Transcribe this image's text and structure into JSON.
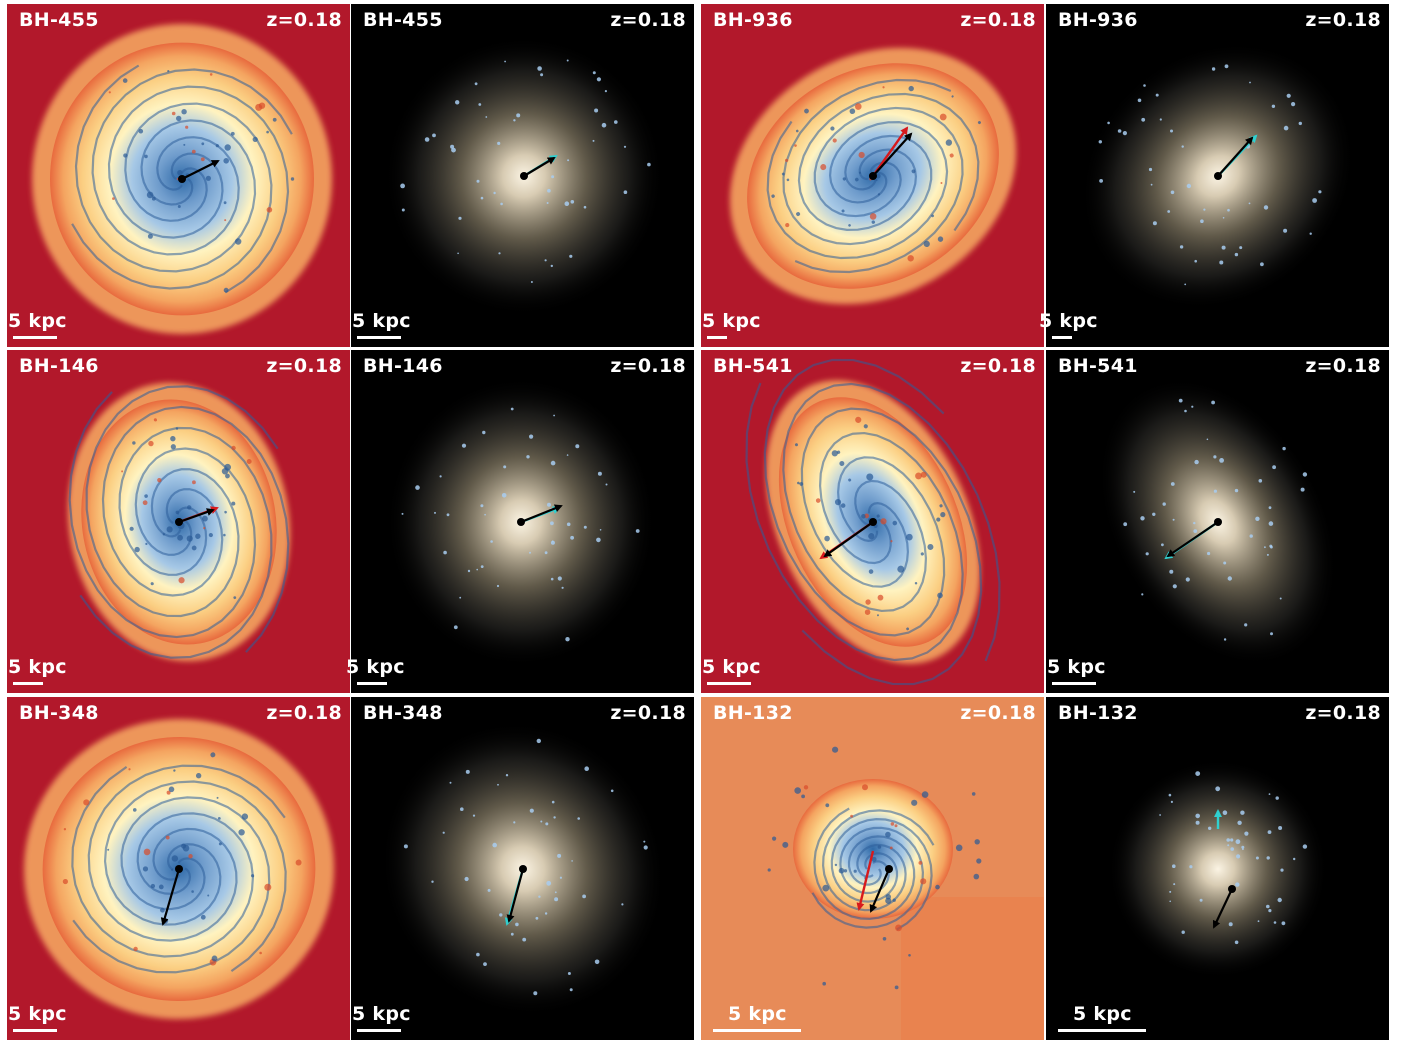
{
  "rows": [
    {
      "pairs": [
        {
          "id": "BH-455",
          "redshift": "z=0.18",
          "gas_scale": "5 kpc",
          "star_scale": "5 kpc"
        },
        {
          "id": "BH-936",
          "redshift": "z=0.18",
          "gas_scale": "5 kpc",
          "star_scale": "5 kpc"
        }
      ]
    },
    {
      "pairs": [
        {
          "id": "BH-146",
          "redshift": "z=0.18",
          "gas_scale": "5 kpc",
          "star_scale": "5 kpc"
        },
        {
          "id": "BH-541",
          "redshift": "z=0.18",
          "gas_scale": "5 kpc",
          "star_scale": "5 kpc"
        }
      ]
    },
    {
      "pairs": [
        {
          "id": "BH-348",
          "redshift": "z=0.18",
          "gas_scale": "5 kpc",
          "star_scale": "5 kpc"
        },
        {
          "id": "BH-132",
          "redshift": "z=0.18",
          "gas_scale": "5 kpc",
          "star_scale": "5 kpc"
        }
      ]
    }
  ],
  "colors": {
    "gas_background": "#b2182b",
    "gas_warm": "#f4a460",
    "gas_cool": "#a6c8e6",
    "stars_background": "#000000",
    "arrow_black": "#000000",
    "arrow_red": "#d7191c",
    "arrow_cyan": "#2fd0d0"
  }
}
